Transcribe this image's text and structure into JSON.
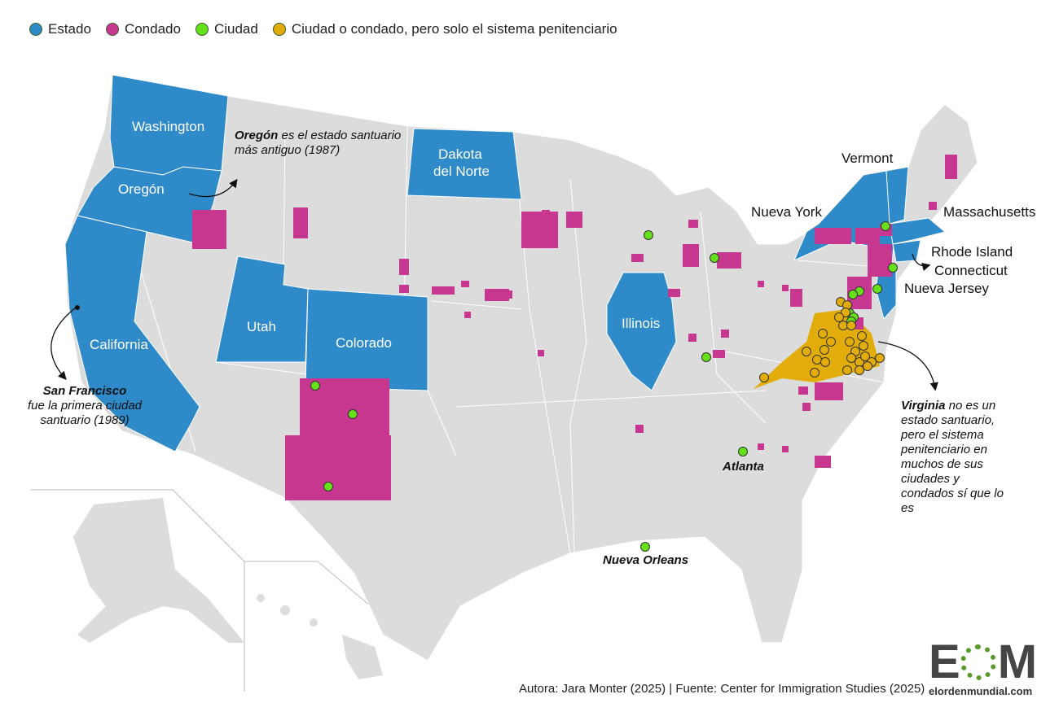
{
  "colors": {
    "state": "#2e8ac8",
    "county": "#c8378f",
    "city": "#66e01a",
    "prison": "#e2ad0a",
    "land": "#dcdcdc"
  },
  "legend": [
    {
      "label": "Estado",
      "color": "#2e8ac8"
    },
    {
      "label": "Condado",
      "color": "#c8378f"
    },
    {
      "label": "Ciudad",
      "color": "#66e01a"
    },
    {
      "label": "Ciudad o condado, pero solo el sistema penitenciario",
      "color": "#e2ad0a"
    }
  ],
  "states": {
    "washington": "Washington",
    "oregon": "Oregón",
    "california": "California",
    "utah": "Utah",
    "colorado": "Colorado",
    "north_dakota_1": "Dakota",
    "north_dakota_2": "del Norte",
    "illinois": "Illinois",
    "vermont": "Vermont",
    "new_york": "Nueva York",
    "massachusetts": "Massachusetts",
    "rhode_island": "Rhode Island",
    "connecticut": "Connecticut",
    "new_jersey": "Nueva Jersey"
  },
  "annotations": {
    "oregon": {
      "bold": "Oregón",
      "text": " es el estado santuario más antiguo (1987)"
    },
    "san_francisco": {
      "bold": "San Francisco",
      "text": "fue la primera ciudad santuario (1989)"
    },
    "virginia": {
      "bold": "Virginia",
      "text": " no es un estado santuario, pero el sistema penitenciario en muchos de sus ciudades y condados sí que lo es"
    }
  },
  "cities": {
    "atlanta": "Atlanta",
    "new_orleans": "Nueva Orleans"
  },
  "credits": "Autora: Jara Monter (2025) | Fuente: Center for Immigration Studies (2025)",
  "logo": {
    "letters": "EOM",
    "url": "elordenmundial.com"
  }
}
